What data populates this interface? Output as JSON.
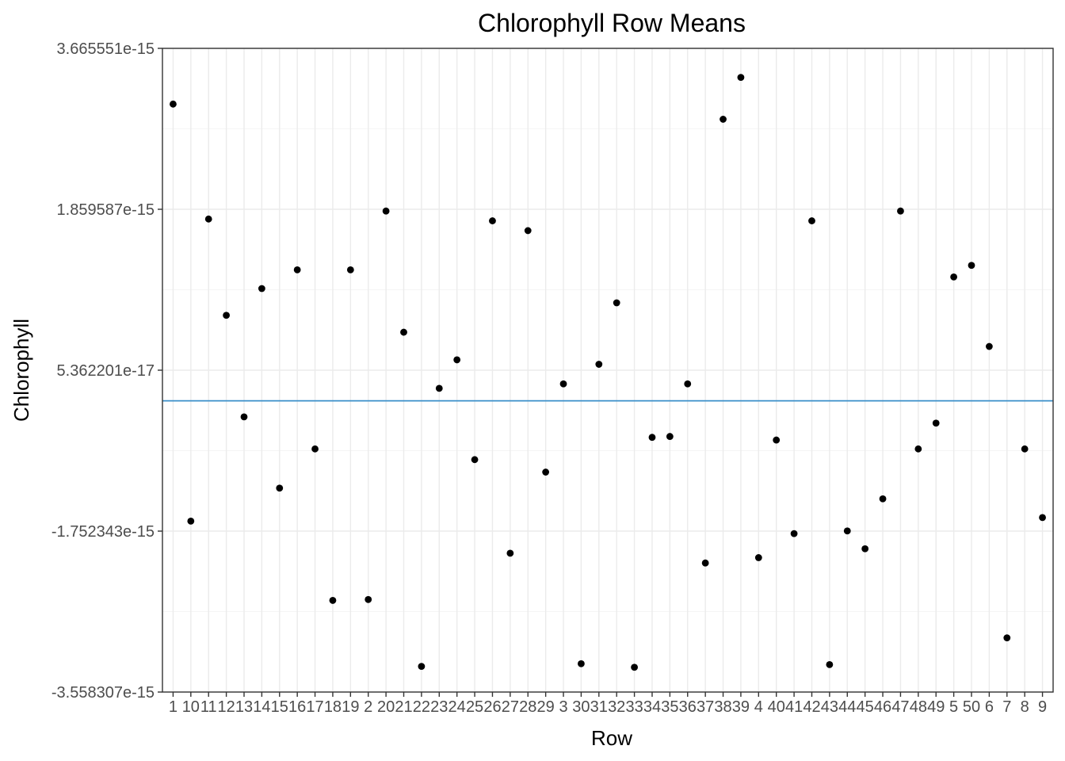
{
  "chart_data": {
    "type": "scatter",
    "title": "Chlorophyll Row Means",
    "xlabel": "Row",
    "ylabel": "Chlorophyll",
    "categories": [
      "1",
      "10",
      "11",
      "12",
      "13",
      "14",
      "15",
      "16",
      "17",
      "18",
      "19",
      "2",
      "20",
      "21",
      "22",
      "23",
      "24",
      "25",
      "26",
      "27",
      "28",
      "29",
      "3",
      "30",
      "31",
      "32",
      "33",
      "34",
      "35",
      "36",
      "37",
      "38",
      "39",
      "4",
      "40",
      "41",
      "42",
      "43",
      "44",
      "45",
      "46",
      "47",
      "48",
      "49",
      "5",
      "50",
      "6",
      "7",
      "8",
      "9"
    ],
    "values": [
      3.04e-15,
      -1.64e-15,
      1.75e-15,
      6.7e-16,
      -4.7e-16,
      9.7e-16,
      -1.27e-15,
      1.18e-15,
      -8.3e-16,
      -2.53e-15,
      1.18e-15,
      -2.52e-15,
      1.84e-15,
      4.8e-16,
      -3.27e-15,
      -1.5e-16,
      1.7e-16,
      -9.5e-16,
      1.73e-15,
      -2e-15,
      1.62e-15,
      -1.09e-15,
      -1e-16,
      -3.24e-15,
      1.2e-16,
      8.1e-16,
      -3.28e-15,
      -7e-16,
      -6.9e-16,
      -1e-16,
      -2.11e-15,
      2.87e-15,
      3.34e-15,
      -2.05e-15,
      -7.3e-16,
      -1.78e-15,
      1.73e-15,
      -3.25e-15,
      -1.75e-15,
      -1.95e-15,
      -1.39e-15,
      1.84e-15,
      -8.3e-16,
      -5.4e-16,
      1.1e-15,
      1.23e-15,
      3.2e-16,
      -2.95e-15,
      -8.3e-16,
      -1.6e-15
    ],
    "reference_line": -2.9e-16,
    "yticks": [
      "3.665551e-15",
      "1.859587e-15",
      "5.362201e-17",
      "-1.752343e-15",
      "-3.558307e-15"
    ],
    "ytick_values": [
      3.665551e-15,
      1.859587e-15,
      5.362201e-17,
      -1.752343e-15,
      -3.558307e-15
    ],
    "ylim": [
      -3.558307e-15,
      3.665551e-15
    ],
    "grid": true,
    "colors": {
      "points": "#000000",
      "reference_line": "#3a8fc9",
      "grid": "#ebebeb",
      "border": "#333333"
    }
  }
}
